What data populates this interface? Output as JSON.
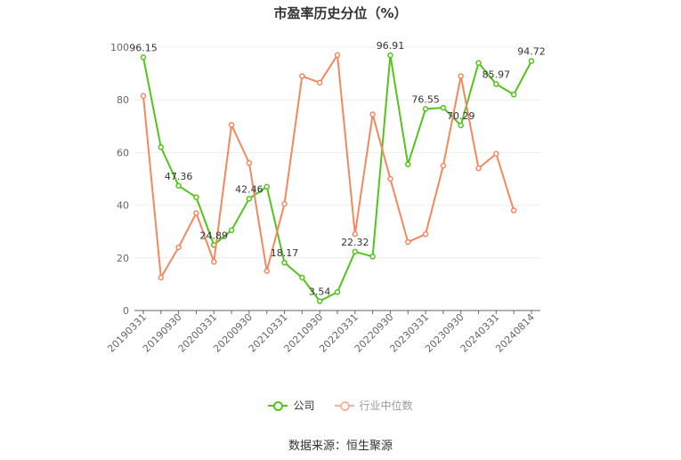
{
  "title": "市盈率历史分位（%）",
  "source": "数据来源：恒生聚源",
  "legend": {
    "company": "公司",
    "industry": "行业中位数"
  },
  "colors": {
    "company": "#52c41a",
    "industry": "#f5875f",
    "grid": "#eeeeee",
    "axis": "#666666",
    "label": "#333333"
  },
  "chart_data": {
    "type": "line",
    "ylim": [
      0,
      100
    ],
    "yticks": [
      0,
      20,
      40,
      60,
      80,
      100
    ],
    "xtick_labels": [
      "20190331",
      "20190930",
      "20200331",
      "20200930",
      "20210331",
      "20210930",
      "20220331",
      "20220930",
      "20230331",
      "20230930",
      "20240331",
      "20240814"
    ],
    "series": [
      {
        "name": "公司",
        "values": [
          96.15,
          62.0,
          47.36,
          43.0,
          24.89,
          30.5,
          42.46,
          47.0,
          18.17,
          12.5,
          3.54,
          7.0,
          22.32,
          20.5,
          96.91,
          55.5,
          76.55,
          77.0,
          70.29,
          94.0,
          85.97,
          82.0,
          94.72
        ],
        "labels": [
          "96.15",
          "",
          "47.36",
          "",
          "24.89",
          "",
          "42.46",
          "",
          "18.17",
          "",
          "3.54",
          "",
          "22.32",
          "",
          "96.91",
          "",
          "76.55",
          "",
          "70.29",
          "",
          "85.97",
          "",
          "94.72"
        ]
      },
      {
        "name": "行业中位数",
        "values": [
          81.5,
          12.5,
          24.0,
          37.0,
          18.5,
          70.5,
          56.0,
          15.0,
          40.5,
          89.0,
          86.5,
          97.0,
          29.0,
          74.5,
          50.0,
          26.0,
          29.0,
          55.0,
          89.0,
          54.0,
          59.5,
          38.0,
          null
        ]
      }
    ]
  }
}
